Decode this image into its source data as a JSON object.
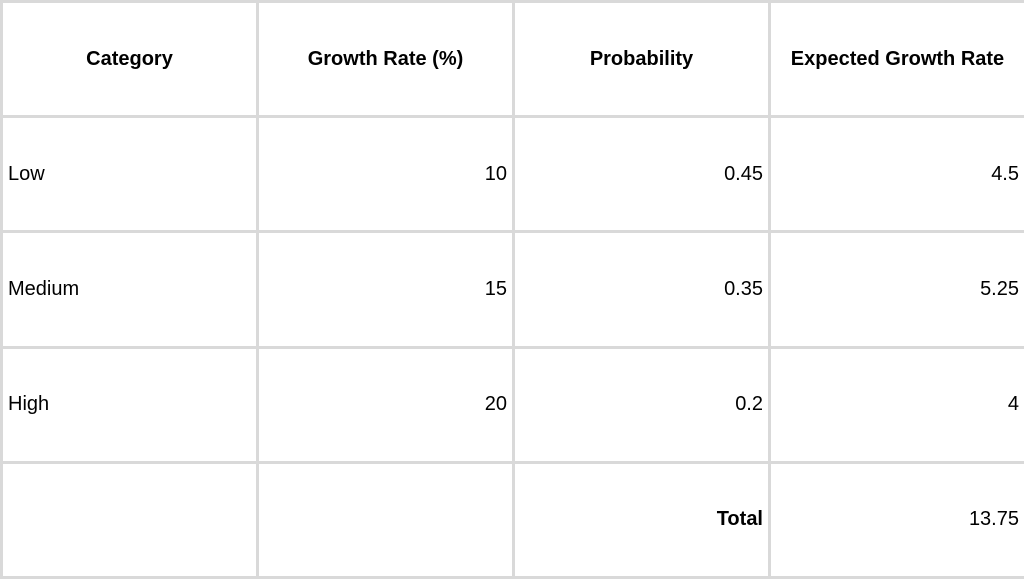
{
  "columns": [
    "Category",
    "Growth Rate (%)",
    "Probability",
    "Expected Growth Rate"
  ],
  "rows": [
    {
      "category": "Low",
      "growth_rate": "10",
      "probability": "0.45",
      "expected": "4.5"
    },
    {
      "category": "Medium",
      "growth_rate": "15",
      "probability": "0.35",
      "expected": "5.25"
    },
    {
      "category": "High",
      "growth_rate": "20",
      "probability": "0.2",
      "expected": "4"
    }
  ],
  "total": {
    "label": "Total",
    "value": "13.75"
  },
  "colors": {
    "gridline": "#d9d9d9",
    "background": "#ffffff",
    "text": "#000000"
  }
}
